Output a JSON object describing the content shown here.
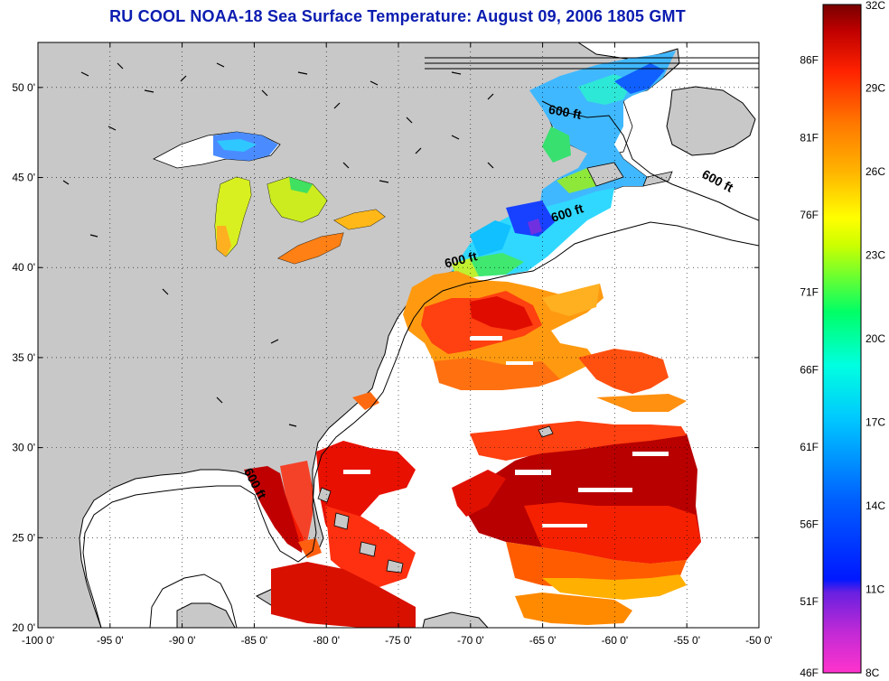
{
  "title": "RU COOL  NOAA-18  Sea Surface Temperature:  August 09, 2006 1805 GMT",
  "map": {
    "lon_range": [
      -100,
      -50
    ],
    "lat_range": [
      20,
      52.5
    ],
    "lon_ticks": [
      {
        "value": -100,
        "label": "-100 0'"
      },
      {
        "value": -95,
        "label": "-95 0'"
      },
      {
        "value": -90,
        "label": "-90 0'"
      },
      {
        "value": -85,
        "label": "-85 0'"
      },
      {
        "value": -80,
        "label": "-80 0'"
      },
      {
        "value": -75,
        "label": "-75 0'"
      },
      {
        "value": -70,
        "label": "-70 0'"
      },
      {
        "value": -65,
        "label": "-65 0'"
      },
      {
        "value": -60,
        "label": "-60 0'"
      },
      {
        "value": -55,
        "label": "-55 0'"
      },
      {
        "value": -50,
        "label": "-50 0'"
      }
    ],
    "lat_ticks": [
      {
        "value": 20,
        "label": "20 0'"
      },
      {
        "value": 25,
        "label": "25 0'"
      },
      {
        "value": 30,
        "label": "30 0'"
      },
      {
        "value": 35,
        "label": "35 0'"
      },
      {
        "value": 40,
        "label": "40 0'"
      },
      {
        "value": 45,
        "label": "45 0'"
      },
      {
        "value": 50,
        "label": "50 0'"
      }
    ],
    "grid": "dotted",
    "colors": {
      "land": "#c8c8c8",
      "ocean_nodata": "#ffffff",
      "coast": "#000000"
    },
    "contour_labels": [
      {
        "text": "600 ft",
        "lon": -63.5,
        "lat": 48.4,
        "angle": 10
      },
      {
        "text": "600 ft",
        "lon": -53.0,
        "lat": 44.6,
        "angle": 28
      },
      {
        "text": "600 ft",
        "lon": -63.2,
        "lat": 42.8,
        "angle": -18
      },
      {
        "text": "600 ft",
        "lon": -70.6,
        "lat": 40.2,
        "angle": -14
      },
      {
        "text": "600 ft",
        "lon": -85.2,
        "lat": 27.9,
        "angle": 62
      }
    ]
  },
  "colorbar": {
    "celsius_labels": [
      "32C",
      "29C",
      "26C",
      "23C",
      "20C",
      "17C",
      "14C",
      "11C",
      "8C"
    ],
    "fahrenheit_labels": [
      "86F",
      "81F",
      "76F",
      "71F",
      "66F",
      "61F",
      "56F",
      "51F",
      "46F"
    ],
    "fahrenheit_values": [
      86,
      81,
      76,
      71,
      66,
      61,
      56,
      51,
      46
    ],
    "range_c": [
      8,
      32
    ],
    "stops": [
      "#ff33cc",
      "#7a22d8",
      "#0018ff",
      "#0090ff",
      "#00ffff",
      "#00ff66",
      "#ffff00",
      "#ff9900",
      "#ff1a00",
      "#7a0000"
    ]
  }
}
